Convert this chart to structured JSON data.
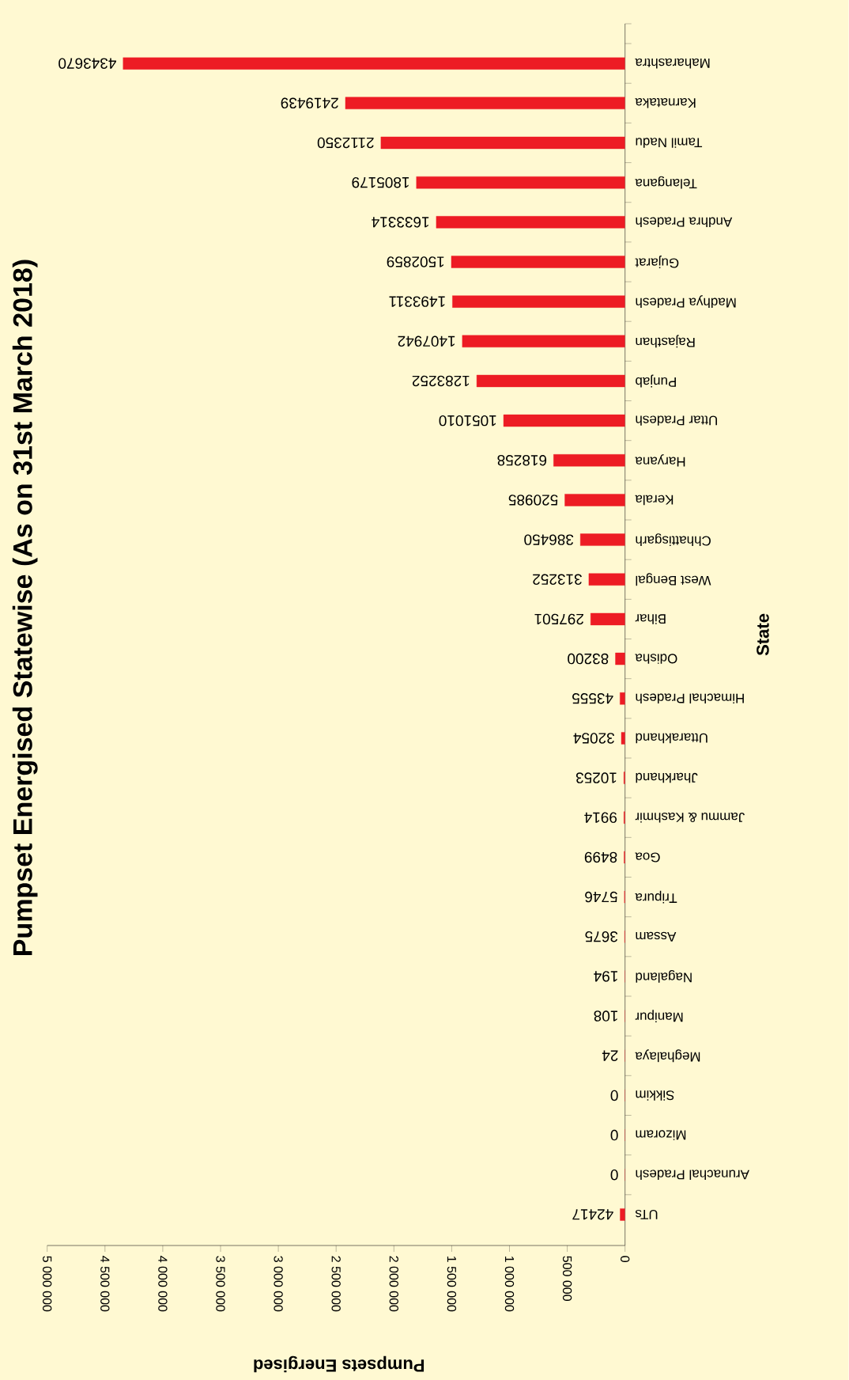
{
  "chart_data": {
    "type": "bar",
    "orientation": "horizontal",
    "title": "Pumpset Energised Statewise (As on 31st March 2018)",
    "xlabel": "Pumpsets Energised",
    "ylabel": "State",
    "categories": [
      "Maharashtra",
      "Karnataka",
      "Tamil Nadu",
      "Telangana",
      "Andhra Pradesh",
      "Gujarat",
      "Madhya Pradesh",
      "Rajasthan",
      "Punjab",
      "Uttar Pradesh",
      "Haryana",
      "Kerala",
      "Chhattisgarh",
      "West Bengal",
      "Bihar",
      "Odisha",
      "Himachal Pradesh",
      "Uttarakhand",
      "Jharkhand",
      "Jammu & Kashmir",
      "Goa",
      "Tripura",
      "Assam",
      "Nagaland",
      "Manipur",
      "Meghalaya",
      "Sikkim",
      "Mizoram",
      "Arunachal Pradesh",
      "UTs"
    ],
    "values": [
      4343670,
      2419439,
      2112350,
      1805179,
      1633314,
      1502859,
      1493311,
      1407942,
      1283252,
      1051010,
      618258,
      520985,
      386450,
      313252,
      297501,
      83200,
      43555,
      32054,
      10253,
      9914,
      8499,
      5746,
      3675,
      194,
      108,
      24,
      0,
      0,
      0,
      42417
    ],
    "color": "#ed1c24",
    "xlim": [
      5000000,
      0
    ],
    "xticks": [
      {
        "value": 5000000,
        "label": "5 000 000"
      },
      {
        "value": 4500000,
        "label": "4 500 000"
      },
      {
        "value": 4000000,
        "label": "4 000 000"
      },
      {
        "value": 3500000,
        "label": "3 500 000"
      },
      {
        "value": 3000000,
        "label": "3 000 000"
      },
      {
        "value": 2500000,
        "label": "2 500 000"
      },
      {
        "value": 2000000,
        "label": "2 000 000"
      },
      {
        "value": 1500000,
        "label": "1 500 000"
      },
      {
        "value": 1000000,
        "label": "1 000 000"
      },
      {
        "value": 500000,
        "label": "500 000"
      },
      0
    ],
    "data_labels": true
  }
}
